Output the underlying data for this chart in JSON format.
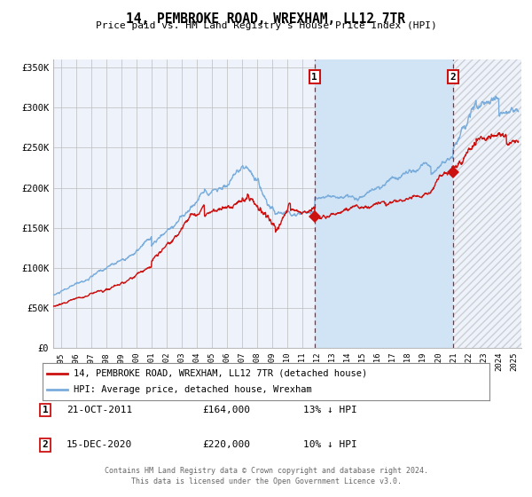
{
  "title": "14, PEMBROKE ROAD, WREXHAM, LL12 7TR",
  "subtitle": "Price paid vs. HM Land Registry's House Price Index (HPI)",
  "ylabel_ticks": [
    "£0",
    "£50K",
    "£100K",
    "£150K",
    "£200K",
    "£250K",
    "£300K",
    "£350K"
  ],
  "ytick_values": [
    0,
    50000,
    100000,
    150000,
    200000,
    250000,
    300000,
    350000
  ],
  "ylim": [
    0,
    360000
  ],
  "xlim_start": 1994.5,
  "xlim_end": 2025.5,
  "hpi_color": "#7aaddc",
  "price_color": "#cc1111",
  "background_color": "#ffffff",
  "plot_bg_color": "#eef3fb",
  "shaded_region_color": "#d0e4f5",
  "grid_color": "#bbbbbb",
  "point1_x": 2011.81,
  "point1_y": 164000,
  "point2_x": 2020.96,
  "point2_y": 220000,
  "legend_line1": "14, PEMBROKE ROAD, WREXHAM, LL12 7TR (detached house)",
  "legend_line2": "HPI: Average price, detached house, Wrexham",
  "annotation1_label": "1",
  "annotation1_date": "21-OCT-2011",
  "annotation1_price": "£164,000",
  "annotation1_hpi": "13% ↓ HPI",
  "annotation2_label": "2",
  "annotation2_date": "15-DEC-2020",
  "annotation2_price": "£220,000",
  "annotation2_hpi": "10% ↓ HPI",
  "footer_line1": "Contains HM Land Registry data © Crown copyright and database right 2024.",
  "footer_line2": "This data is licensed under the Open Government Licence v3.0.",
  "hatch_color": "#aaaaaa",
  "x_years": [
    1995,
    1996,
    1997,
    1998,
    1999,
    2000,
    2001,
    2002,
    2003,
    2004,
    2005,
    2006,
    2007,
    2008,
    2009,
    2010,
    2011,
    2012,
    2013,
    2014,
    2015,
    2016,
    2017,
    2018,
    2019,
    2020,
    2021,
    2022,
    2023,
    2024,
    2025
  ]
}
